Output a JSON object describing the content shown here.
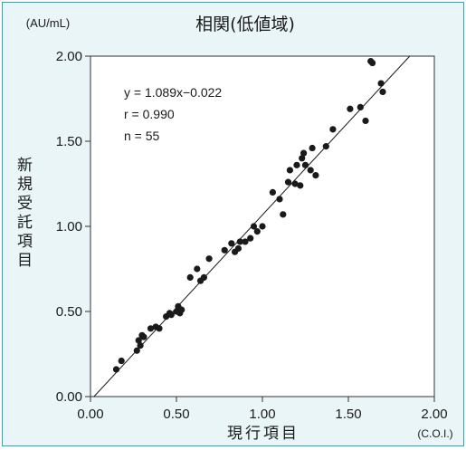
{
  "chart_data": {
    "type": "scatter",
    "title": "相関(低値域)",
    "xlabel": "現行項目",
    "xunit": "(C.O.I.)",
    "ylabel": "新規受託項目",
    "yunit": "(AU/mL)",
    "xlim": [
      0,
      2
    ],
    "ylim": [
      0,
      2
    ],
    "xticks": [
      0,
      0.5,
      1.0,
      1.5,
      2.0
    ],
    "xtick_labels": [
      "0.00",
      "0.50",
      "1.00",
      "1.50",
      "2.00"
    ],
    "yticks": [
      0,
      0.5,
      1.0,
      1.5,
      2.0
    ],
    "ytick_labels": [
      "0.00",
      "0.50",
      "1.00",
      "1.50",
      "2.00"
    ],
    "grid": false,
    "annotations": [
      "y = 1.089x−0.022",
      "r = 0.990",
      "n = 55"
    ],
    "regression": {
      "slope": 1.089,
      "intercept": -0.022
    },
    "points": [
      [
        0.15,
        0.16
      ],
      [
        0.18,
        0.21
      ],
      [
        0.27,
        0.27
      ],
      [
        0.28,
        0.33
      ],
      [
        0.29,
        0.3
      ],
      [
        0.3,
        0.36
      ],
      [
        0.31,
        0.35
      ],
      [
        0.35,
        0.4
      ],
      [
        0.38,
        0.41
      ],
      [
        0.4,
        0.4
      ],
      [
        0.44,
        0.47
      ],
      [
        0.46,
        0.49
      ],
      [
        0.47,
        0.48
      ],
      [
        0.5,
        0.5
      ],
      [
        0.51,
        0.53
      ],
      [
        0.52,
        0.49
      ],
      [
        0.53,
        0.51
      ],
      [
        0.58,
        0.7
      ],
      [
        0.62,
        0.75
      ],
      [
        0.64,
        0.68
      ],
      [
        0.66,
        0.7
      ],
      [
        0.69,
        0.81
      ],
      [
        0.78,
        0.86
      ],
      [
        0.82,
        0.9
      ],
      [
        0.84,
        0.85
      ],
      [
        0.86,
        0.87
      ],
      [
        0.87,
        0.91
      ],
      [
        0.9,
        0.91
      ],
      [
        0.93,
        0.93
      ],
      [
        0.95,
        1.0
      ],
      [
        0.97,
        0.97
      ],
      [
        1.0,
        1.0
      ],
      [
        1.06,
        1.2
      ],
      [
        1.1,
        1.16
      ],
      [
        1.12,
        1.07
      ],
      [
        1.15,
        1.26
      ],
      [
        1.16,
        1.33
      ],
      [
        1.19,
        1.25
      ],
      [
        1.2,
        1.36
      ],
      [
        1.22,
        1.24
      ],
      [
        1.23,
        1.4
      ],
      [
        1.24,
        1.43
      ],
      [
        1.25,
        1.36
      ],
      [
        1.28,
        1.33
      ],
      [
        1.29,
        1.46
      ],
      [
        1.31,
        1.3
      ],
      [
        1.37,
        1.47
      ],
      [
        1.41,
        1.57
      ],
      [
        1.51,
        1.69
      ],
      [
        1.57,
        1.7
      ],
      [
        1.6,
        1.62
      ],
      [
        1.63,
        1.97
      ],
      [
        1.64,
        1.96
      ],
      [
        1.69,
        1.84
      ],
      [
        1.7,
        1.79
      ]
    ]
  }
}
